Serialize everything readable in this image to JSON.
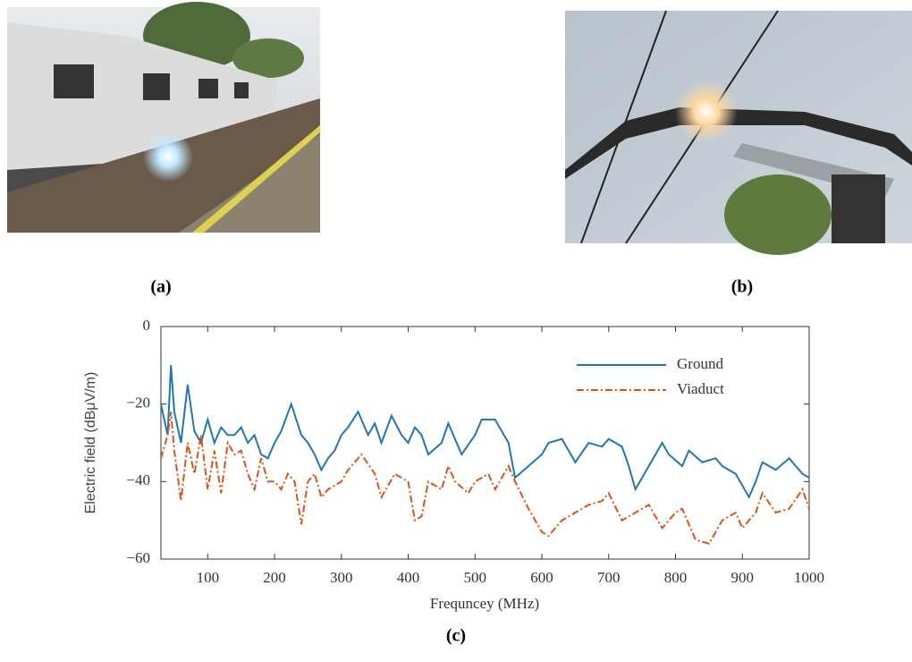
{
  "captions": [
    "(a)",
    "(b)",
    "(c)"
  ],
  "chart_data": {
    "type": "line",
    "xlabel": "Frequncey (MHz)",
    "ylabel": "Electric field (dBμV/m)",
    "xlim": [
      30,
      1000
    ],
    "ylim": [
      -60,
      0
    ],
    "xticks": [
      100,
      200,
      300,
      400,
      500,
      600,
      700,
      800,
      900,
      1000
    ],
    "yticks": [
      {
        "value": -60,
        "label": "−60"
      },
      {
        "value": -40,
        "label": "−40"
      },
      {
        "value": -20,
        "label": "−20"
      },
      0
    ],
    "legend": "upper right",
    "series": [
      {
        "name": "Ground",
        "color": "#1f77b4",
        "dash": "solid",
        "x": [
          30,
          40,
          45,
          50,
          60,
          70,
          80,
          90,
          100,
          110,
          120,
          130,
          140,
          150,
          160,
          170,
          180,
          190,
          200,
          210,
          225,
          240,
          250,
          260,
          270,
          280,
          290,
          300,
          310,
          325,
          340,
          350,
          360,
          375,
          390,
          400,
          410,
          420,
          430,
          450,
          460,
          470,
          480,
          500,
          510,
          530,
          550,
          560,
          580,
          600,
          610,
          630,
          650,
          670,
          690,
          700,
          720,
          730,
          740,
          760,
          780,
          790,
          810,
          820,
          840,
          860,
          870,
          890,
          910,
          920,
          930,
          950,
          970,
          990,
          1000
        ],
        "values": [
          -20,
          -28,
          -10,
          -22,
          -30,
          -15,
          -27,
          -30,
          -24,
          -30,
          -26,
          -28,
          -28,
          -26,
          -30,
          -28,
          -33,
          -34,
          -30,
          -27,
          -20,
          -28,
          -30,
          -33,
          -37,
          -34,
          -32,
          -28,
          -26,
          -22,
          -28,
          -25,
          -30,
          -23,
          -28,
          -30,
          -26,
          -28,
          -33,
          -30,
          -25,
          -29,
          -33,
          -28,
          -24,
          -24,
          -30,
          -39,
          -36,
          -33,
          -30,
          -29,
          -35,
          -30,
          -31,
          -29,
          -31,
          -36,
          -42,
          -36,
          -30,
          -33,
          -36,
          -32,
          -35,
          -34,
          -36,
          -38,
          -44,
          -40,
          -35,
          -37,
          -34,
          -38,
          -39
        ]
      },
      {
        "name": "Viaduct",
        "color": "#d95319",
        "dash": "dashdot",
        "x": [
          30,
          40,
          45,
          50,
          60,
          70,
          80,
          90,
          100,
          110,
          120,
          130,
          140,
          150,
          160,
          170,
          180,
          190,
          200,
          210,
          220,
          230,
          240,
          250,
          260,
          270,
          280,
          300,
          310,
          330,
          350,
          360,
          380,
          400,
          410,
          420,
          430,
          450,
          460,
          470,
          490,
          500,
          520,
          530,
          550,
          560,
          580,
          600,
          610,
          630,
          650,
          670,
          690,
          700,
          720,
          740,
          760,
          780,
          800,
          810,
          830,
          850,
          870,
          890,
          900,
          920,
          930,
          950,
          970,
          990,
          1000
        ],
        "values": [
          -34,
          -28,
          -22,
          -32,
          -45,
          -30,
          -38,
          -28,
          -42,
          -32,
          -43,
          -30,
          -33,
          -32,
          -38,
          -42,
          -34,
          -40,
          -40,
          -42,
          -38,
          -40,
          -51,
          -40,
          -38,
          -44,
          -42,
          -40,
          -37,
          -33,
          -38,
          -44,
          -38,
          -40,
          -50,
          -49,
          -40,
          -42,
          -36,
          -40,
          -43,
          -40,
          -38,
          -42,
          -36,
          -40,
          -47,
          -53,
          -54,
          -50,
          -48,
          -46,
          -45,
          -43,
          -50,
          -48,
          -46,
          -52,
          -48,
          -47,
          -55,
          -56,
          -50,
          -48,
          -52,
          -48,
          -43,
          -48,
          -47,
          -42,
          -47
        ]
      }
    ]
  }
}
